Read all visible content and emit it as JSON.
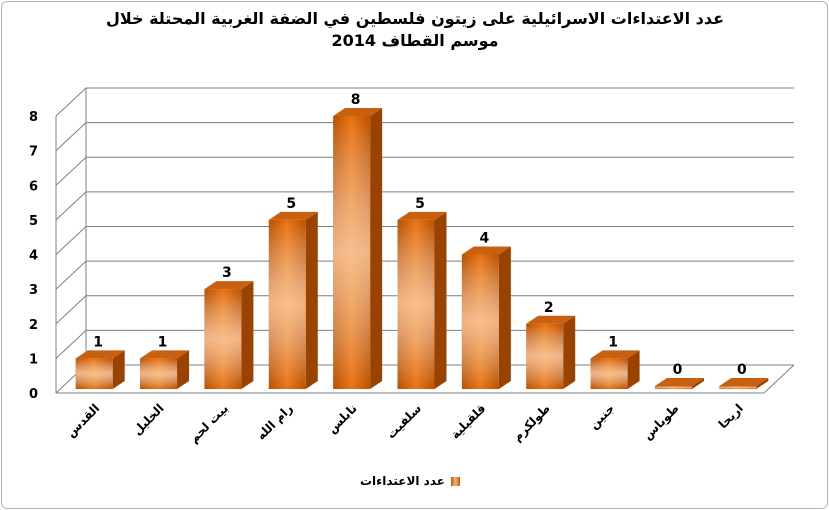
{
  "chart_data": {
    "type": "bar",
    "title_line1": "عدد الاعتداءات الاسرائيلية على زيتون فلسطين في الضفة الغربية المحتلة خلال",
    "title_line2": "موسم القطاف 2014",
    "categories": [
      "القدس",
      "الخليل",
      "بيت لحم",
      "رام الله",
      "نابلس",
      "سلفيت",
      "قلقيلية",
      "طولكرم",
      "جنين",
      "طوباس",
      "اريحا"
    ],
    "series": [
      {
        "name": "عدد الاعتداءات",
        "values": [
          1,
          1,
          3,
          5,
          8,
          5,
          4,
          2,
          1,
          0,
          0
        ]
      }
    ],
    "ylim": [
      0,
      8
    ],
    "yticks": [
      0,
      1,
      2,
      3,
      4,
      5,
      6,
      7,
      8
    ],
    "grid": true,
    "legend_position": "bottom",
    "data_labels": true,
    "style": "3d-cylinder-bar",
    "colors": {
      "bar_dark": "#b84f00",
      "bar_mid": "#e8730f",
      "bar_light": "#f8b98c",
      "bar_top": "#c86010",
      "grid": "#7f7f7f"
    }
  }
}
